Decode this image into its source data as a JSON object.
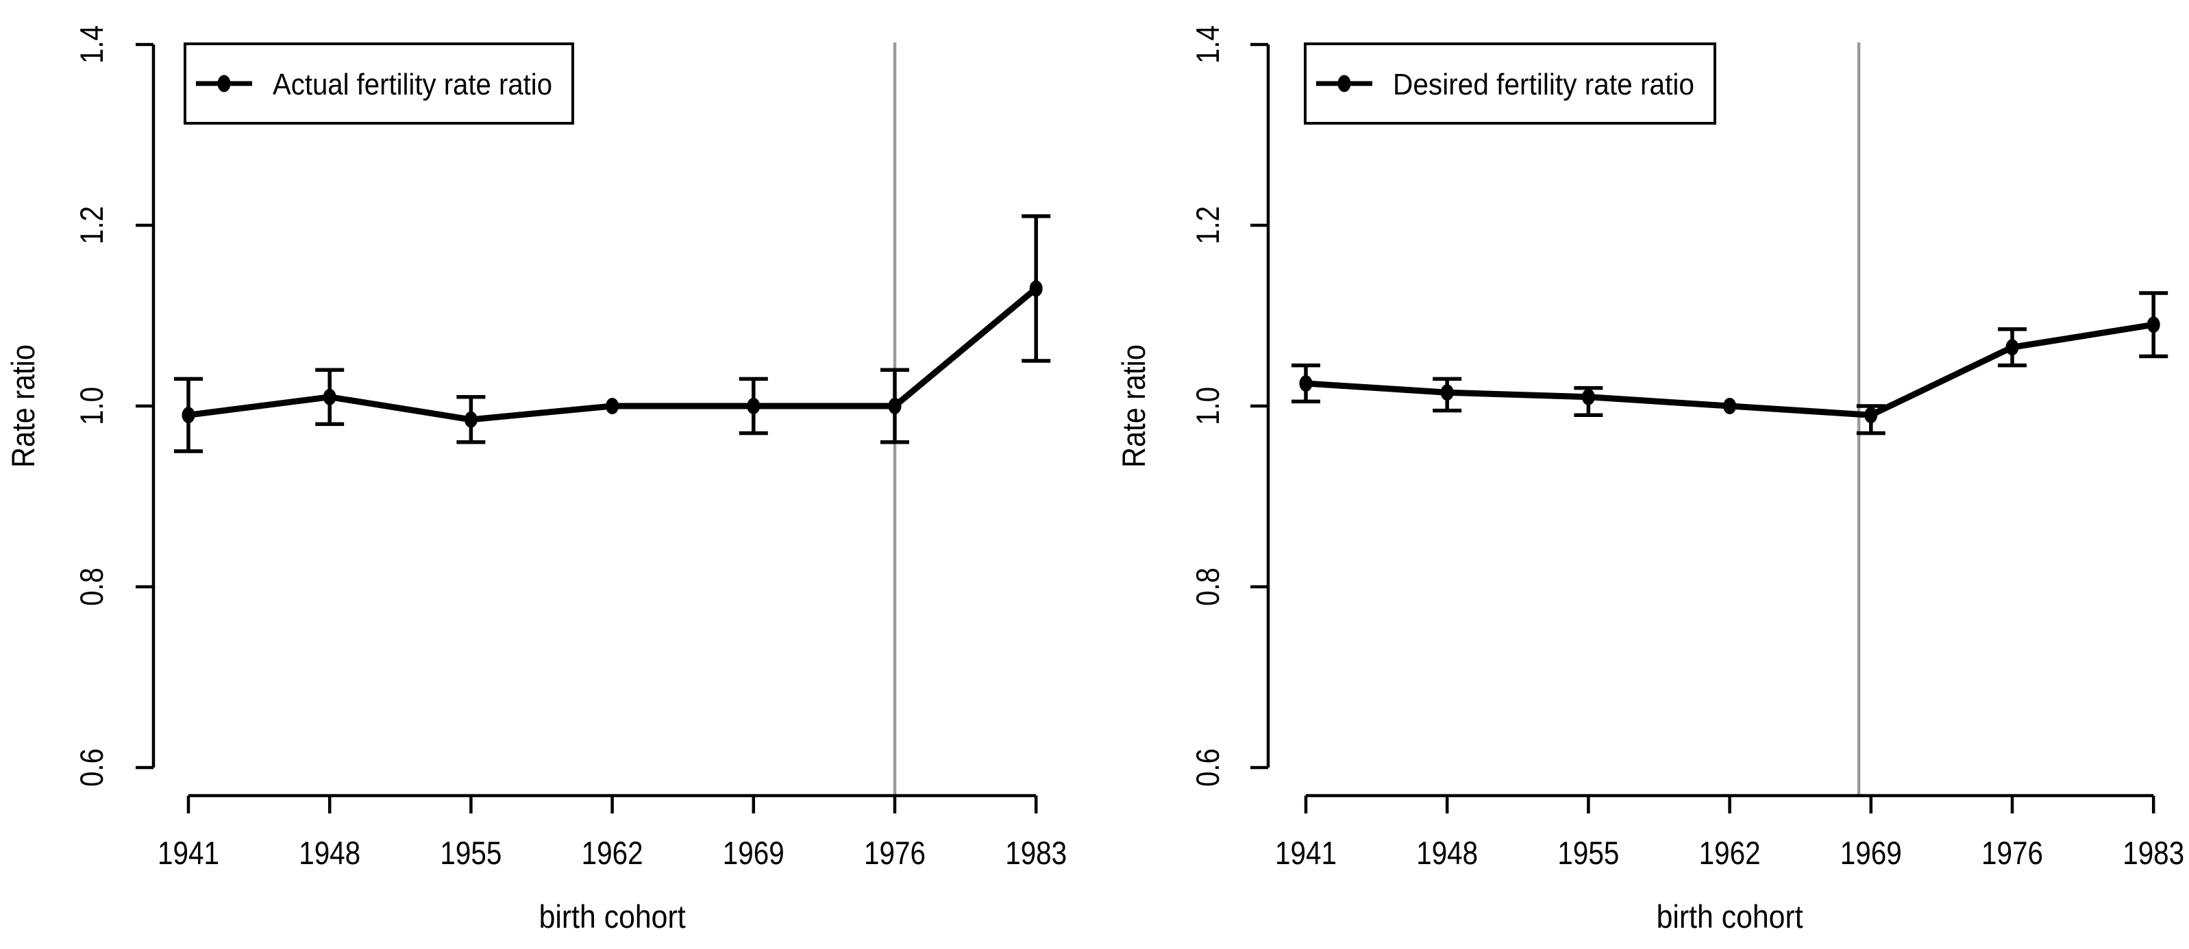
{
  "figure": {
    "background": "#ffffff",
    "description_texts": {
      "xlabel": "birth cohort",
      "ylabel": "Rate ratio"
    }
  },
  "chart_data": [
    {
      "type": "line",
      "panel": "left",
      "title": "",
      "xlabel": "birth cohort",
      "ylabel": "Rate ratio",
      "legend": {
        "label": "Actual fertility rate ratio",
        "position": "top-left",
        "marker": "filled-circle-on-line"
      },
      "x_tick_labels": [
        "1941",
        "1948",
        "1955",
        "1962",
        "1969",
        "1976",
        "1983"
      ],
      "y_tick_labels": [
        "1.4",
        "1.2",
        "1.0",
        "0.8",
        "0.6"
      ],
      "y_ticks": [
        1.4,
        1.2,
        1.0,
        0.8,
        0.6
      ],
      "ylim": [
        0.6,
        1.4
      ],
      "grid": false,
      "vline_x": 1976,
      "vline_color": "#9b9b9b",
      "reference_year": 1962,
      "series": [
        {
          "name": "Actual fertility rate ratio",
          "color": "#000000",
          "x": [
            1941,
            1948,
            1955,
            1962,
            1969,
            1976,
            1983
          ],
          "values": [
            0.99,
            1.01,
            0.985,
            1.0,
            1.0,
            1.0,
            1.13
          ],
          "ci_low": [
            0.95,
            0.98,
            0.96,
            null,
            0.97,
            0.96,
            1.05
          ],
          "ci_high": [
            1.03,
            1.04,
            1.01,
            null,
            1.03,
            1.04,
            1.21
          ]
        }
      ]
    },
    {
      "type": "line",
      "panel": "right",
      "title": "",
      "xlabel": "birth cohort",
      "ylabel": "Rate ratio",
      "legend": {
        "label": "Desired fertility rate ratio",
        "position": "top-left",
        "marker": "filled-circle-on-line"
      },
      "x_tick_labels": [
        "1941",
        "1948",
        "1955",
        "1962",
        "1969",
        "1976",
        "1983"
      ],
      "y_tick_labels": [
        "1.4",
        "1.2",
        "1.0",
        "0.8",
        "0.6"
      ],
      "y_ticks": [
        1.4,
        1.2,
        1.0,
        0.8,
        0.6
      ],
      "ylim": [
        0.6,
        1.4
      ],
      "grid": false,
      "vline_x": 1968.4,
      "vline_color": "#9b9b9b",
      "reference_year": 1962,
      "series": [
        {
          "name": "Desired fertility rate ratio",
          "color": "#000000",
          "x": [
            1941,
            1948,
            1955,
            1962,
            1969,
            1976,
            1983
          ],
          "values": [
            1.025,
            1.015,
            1.01,
            1.0,
            0.99,
            1.065,
            1.09
          ],
          "ci_low": [
            1.005,
            0.995,
            0.99,
            null,
            0.97,
            1.045,
            1.055
          ],
          "ci_high": [
            1.045,
            1.03,
            1.02,
            null,
            1.0,
            1.085,
            1.125
          ]
        }
      ]
    }
  ]
}
